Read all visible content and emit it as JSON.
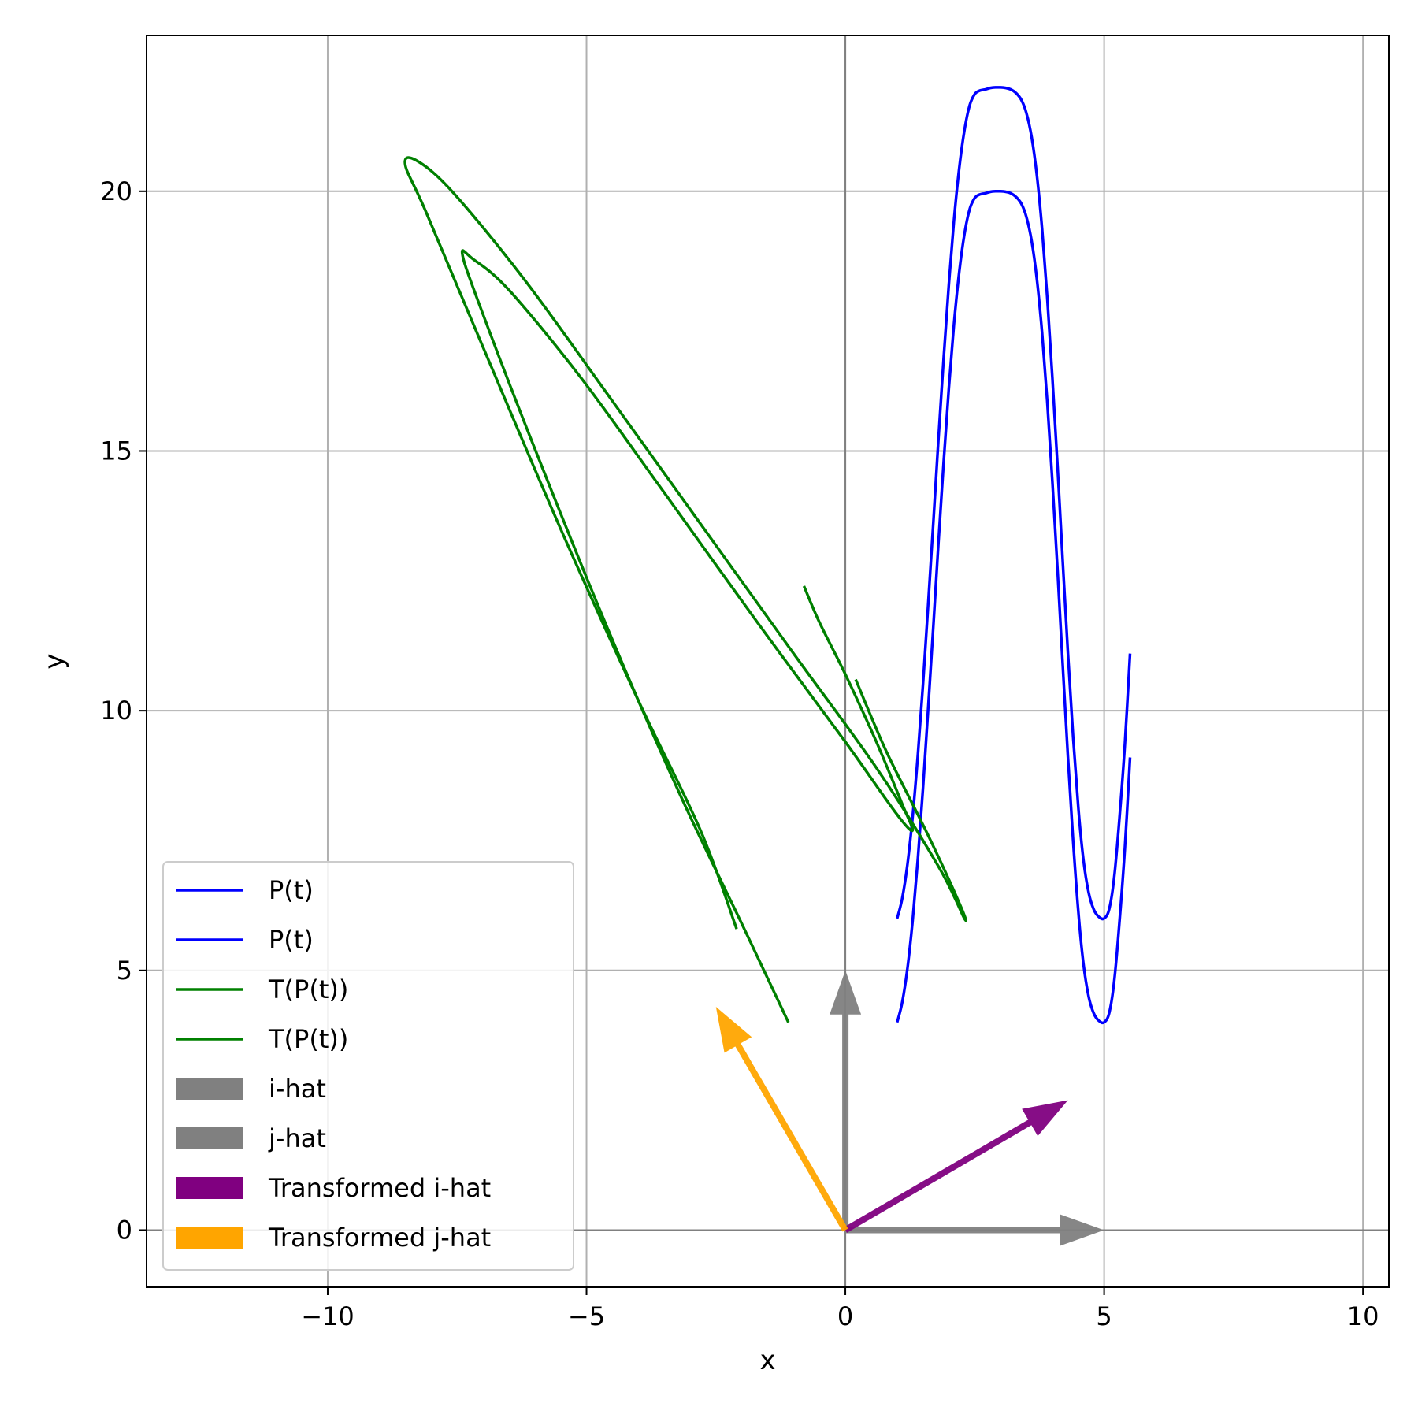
{
  "chart_data": {
    "type": "line",
    "title": "",
    "xlabel": "x",
    "ylabel": "y",
    "xlim": [
      -13.5,
      10.5
    ],
    "ylim": [
      -1.1,
      23.0
    ],
    "grid": true,
    "legend_position": "lower-left",
    "x_ticks": [
      -10,
      -5,
      0,
      5,
      10
    ],
    "y_ticks": [
      0,
      5,
      10,
      15,
      20
    ],
    "x_tick_labels": [
      "−10",
      "−5",
      "0",
      "5",
      "10"
    ],
    "y_tick_labels": [
      "0",
      "5",
      "10",
      "15",
      "20"
    ],
    "series": [
      {
        "name": "P(t)",
        "kind": "line",
        "color": "#0000ff",
        "x": [
          1.0,
          1.1,
          1.2,
          1.3,
          1.4,
          1.5,
          1.6,
          1.7,
          1.8,
          1.9,
          2.0,
          2.1,
          2.2,
          2.3,
          2.4,
          2.5,
          2.6,
          2.7,
          2.8,
          2.9,
          3.0,
          3.1,
          3.2,
          3.3,
          3.4,
          3.5,
          3.6,
          3.7,
          3.8,
          3.9,
          4.0,
          4.1,
          4.2,
          4.3,
          4.4,
          4.5,
          4.6,
          4.7,
          4.8,
          4.9,
          5.0,
          5.1,
          5.2,
          5.3,
          5.4,
          5.5
        ],
        "y": [
          6.0,
          6.39,
          7.04,
          7.96,
          9.14,
          10.5,
          12.04,
          13.63,
          15.24,
          16.79,
          18.22,
          19.45,
          20.44,
          21.17,
          21.65,
          21.87,
          21.94,
          21.96,
          21.99,
          22.0,
          22.0,
          21.99,
          21.96,
          21.89,
          21.76,
          21.5,
          21.04,
          20.31,
          19.28,
          17.97,
          16.41,
          14.69,
          12.89,
          11.12,
          9.5,
          8.14,
          7.13,
          6.5,
          6.17,
          6.03,
          6.0,
          6.19,
          6.84,
          7.98,
          9.35,
          11.1
        ]
      },
      {
        "name": "P(t)",
        "kind": "line",
        "color": "#0000ff",
        "x": [
          1.0,
          1.1,
          1.2,
          1.3,
          1.4,
          1.5,
          1.6,
          1.7,
          1.8,
          1.9,
          2.0,
          2.1,
          2.2,
          2.3,
          2.4,
          2.5,
          2.6,
          2.7,
          2.8,
          2.9,
          3.0,
          3.1,
          3.2,
          3.3,
          3.4,
          3.5,
          3.6,
          3.7,
          3.8,
          3.9,
          4.0,
          4.1,
          4.2,
          4.3,
          4.4,
          4.5,
          4.6,
          4.7,
          4.8,
          4.9,
          5.0,
          5.1,
          5.2,
          5.3,
          5.4,
          5.5
        ],
        "y": [
          4.0,
          4.39,
          5.04,
          5.96,
          7.14,
          8.5,
          10.04,
          11.63,
          13.24,
          14.79,
          16.22,
          17.45,
          18.44,
          19.17,
          19.65,
          19.87,
          19.94,
          19.96,
          19.99,
          20.0,
          20.0,
          19.99,
          19.96,
          19.89,
          19.76,
          19.5,
          19.04,
          18.31,
          17.28,
          15.97,
          14.41,
          12.69,
          10.89,
          9.12,
          7.5,
          6.14,
          5.13,
          4.5,
          4.17,
          4.03,
          4.0,
          4.19,
          4.84,
          5.98,
          7.35,
          9.1
        ]
      },
      {
        "name": "T(P(t))",
        "kind": "line",
        "color": "#008000",
        "x": [
          -2.1,
          -2.8,
          -4.0,
          -5.5,
          -7.0,
          -8.1,
          -8.5,
          -8.3,
          -7.6,
          -6.2,
          -4.6,
          -2.8,
          -1.0,
          0.6,
          1.8,
          2.3,
          2.2,
          1.6,
          0.8,
          0.2
        ],
        "y": [
          5.8,
          7.7,
          10.2,
          13.5,
          17.0,
          19.6,
          20.5,
          20.6,
          20.0,
          18.3,
          16.1,
          13.6,
          11.1,
          8.9,
          7.0,
          6.0,
          6.3,
          7.6,
          9.2,
          10.6
        ]
      },
      {
        "name": "T(P(t))",
        "kind": "line",
        "color": "#008000",
        "x": [
          -1.1,
          -2.0,
          -3.2,
          -4.6,
          -6.1,
          -7.1,
          -7.4,
          -7.2,
          -6.5,
          -5.1,
          -3.5,
          -1.7,
          0.0,
          1.0,
          1.3,
          1.1,
          0.6,
          0.0,
          -0.5,
          -0.8
        ],
        "y": [
          4.0,
          5.9,
          8.4,
          11.6,
          15.3,
          17.9,
          18.8,
          18.7,
          18.1,
          16.4,
          14.2,
          11.7,
          9.4,
          8.0,
          7.7,
          8.2,
          9.4,
          10.7,
          11.7,
          12.4
        ]
      },
      {
        "name": "i-hat",
        "kind": "arrow",
        "color": "#808080",
        "from": [
          0,
          0
        ],
        "to": [
          5,
          0
        ]
      },
      {
        "name": "j-hat",
        "kind": "arrow",
        "color": "#808080",
        "from": [
          0,
          0
        ],
        "to": [
          0,
          5
        ]
      },
      {
        "name": "Transformed i-hat",
        "kind": "arrow",
        "color": "#800080",
        "from": [
          0,
          0
        ],
        "to": [
          4.3,
          2.5
        ]
      },
      {
        "name": "Transformed j-hat",
        "kind": "arrow",
        "color": "#ffa500",
        "from": [
          0,
          0
        ],
        "to": [
          -2.5,
          4.3
        ]
      }
    ],
    "legend": [
      {
        "label": "P(t)",
        "kind": "line",
        "color": "#0000ff"
      },
      {
        "label": "P(t)",
        "kind": "line",
        "color": "#0000ff"
      },
      {
        "label": "T(P(t))",
        "kind": "line",
        "color": "#008000"
      },
      {
        "label": "T(P(t))",
        "kind": "line",
        "color": "#008000"
      },
      {
        "label": "i-hat",
        "kind": "patch",
        "color": "#808080"
      },
      {
        "label": "j-hat",
        "kind": "patch",
        "color": "#808080"
      },
      {
        "label": "Transformed i-hat",
        "kind": "patch",
        "color": "#800080"
      },
      {
        "label": "Transformed j-hat",
        "kind": "patch",
        "color": "#ffa500"
      }
    ]
  }
}
